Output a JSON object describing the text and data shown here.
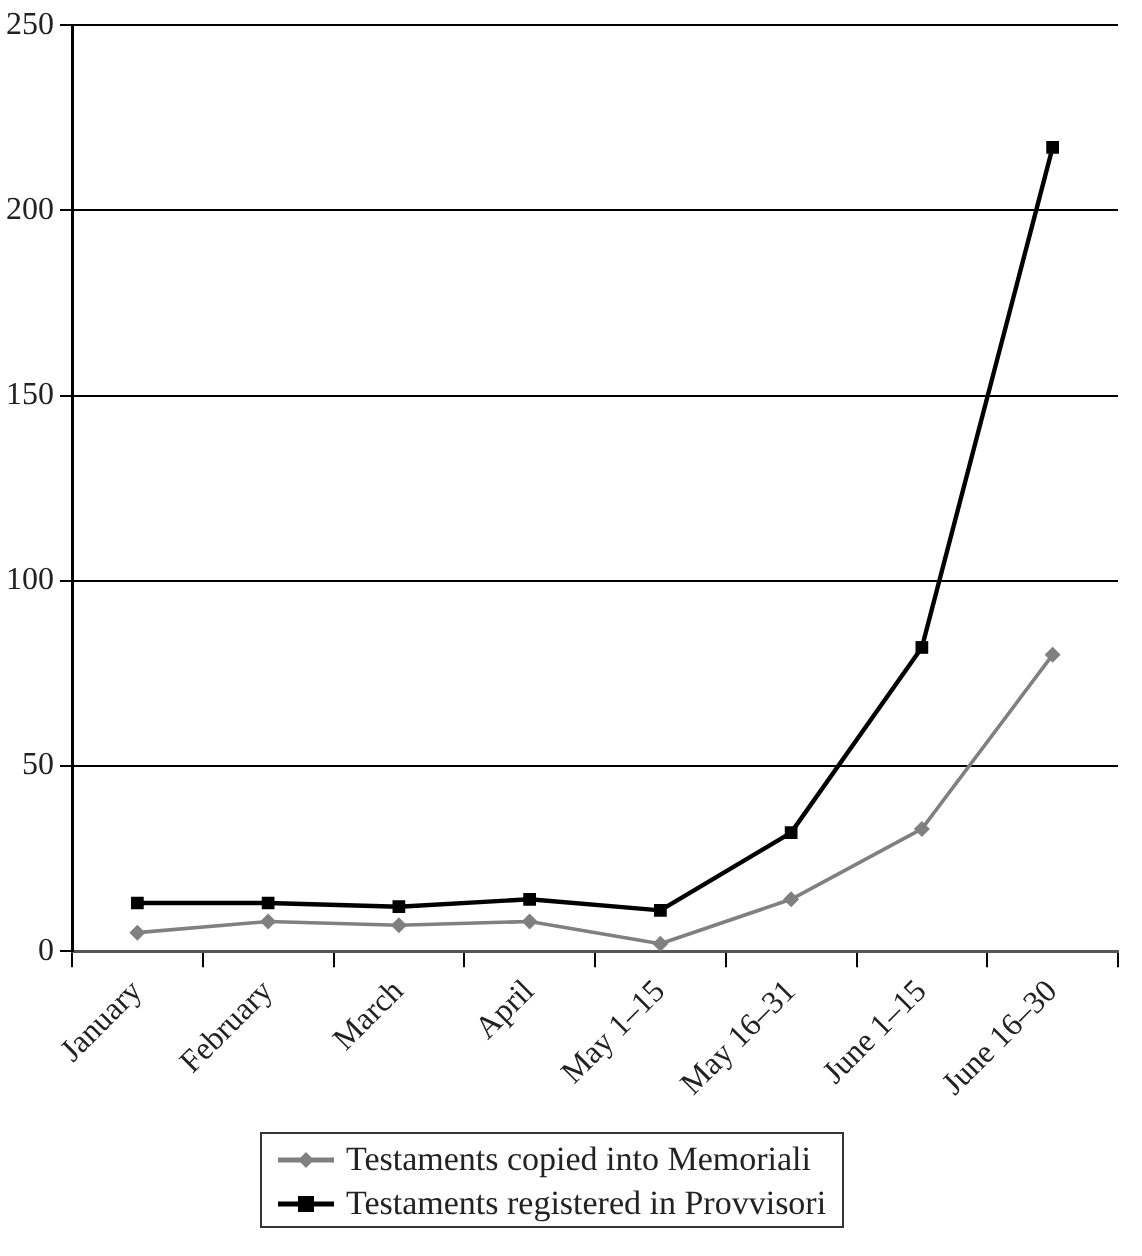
{
  "chart_data": {
    "type": "line",
    "categories": [
      "January",
      "February",
      "March",
      "April",
      "May 1–15",
      "May 16–31",
      "June 1–15",
      "June 16–30"
    ],
    "series": [
      {
        "name": "Testaments copied into Memoriali",
        "color": "#808080",
        "marker": "diamond",
        "values": [
          5,
          8,
          7,
          8,
          2,
          14,
          33,
          80
        ]
      },
      {
        "name": "Testaments registered in Provvisori",
        "color": "#000000",
        "marker": "square",
        "values": [
          13,
          13,
          12,
          14,
          11,
          32,
          82,
          217
        ]
      }
    ],
    "ylim": [
      0,
      250
    ],
    "yticks": [
      0,
      50,
      100,
      150,
      200,
      250
    ],
    "grid": "y",
    "legend": "bottom",
    "line_style": "solid"
  }
}
